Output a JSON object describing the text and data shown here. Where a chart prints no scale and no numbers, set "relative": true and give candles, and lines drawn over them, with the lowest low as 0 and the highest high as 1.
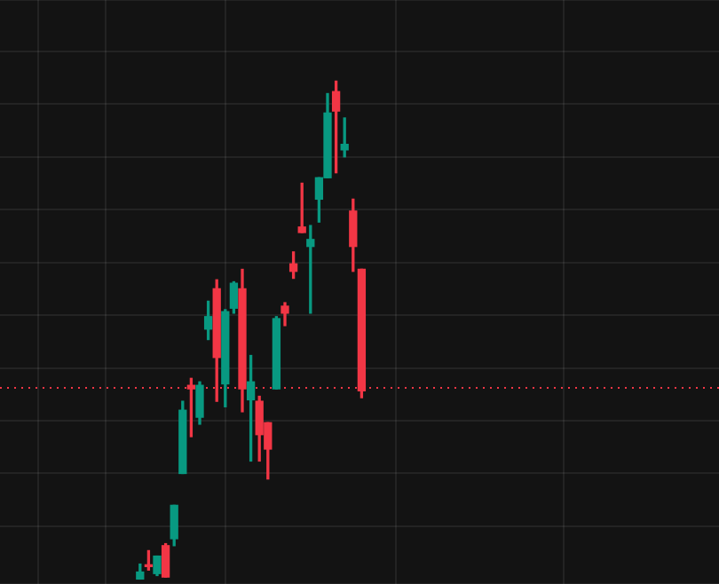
{
  "chart_data": {
    "type": "candlestick",
    "relative": true,
    "grid": true,
    "tick_labels": false,
    "categories": [
      null,
      null,
      null,
      null,
      null,
      null,
      null,
      null,
      null,
      null,
      null,
      null,
      null,
      null,
      null,
      null,
      null,
      null,
      null,
      null,
      null,
      null,
      null,
      null,
      null,
      null,
      null
    ],
    "ohlc": [
      [
        0,
        0.03,
        0,
        0.014
      ],
      [
        0.025,
        0.057,
        0.018,
        0.028
      ],
      [
        0.011,
        0.046,
        0.007,
        0.046
      ],
      [
        0.067,
        0.071,
        0.004,
        0.004
      ],
      [
        0.081,
        0.148,
        0.067,
        0.148
      ],
      [
        0.212,
        0.357,
        0.212,
        0.339
      ],
      [
        0.389,
        0.403,
        0.286,
        0.382
      ],
      [
        0.325,
        0.396,
        0.311,
        0.389
      ],
      [
        0.502,
        0.558,
        0.481,
        0.527
      ],
      [
        0.583,
        0.601,
        0.357,
        0.445
      ],
      [
        0.392,
        0.541,
        0.346,
        0.537
      ],
      [
        0.544,
        0.597,
        0.534,
        0.594
      ],
      [
        0.583,
        0.622,
        0.336,
        0.382
      ],
      [
        0.36,
        0.449,
        0.237,
        0.396
      ],
      [
        0.357,
        0.367,
        0.237,
        0.29
      ],
      [
        0.314,
        0.314,
        0.201,
        0.261
      ],
      [
        0.382,
        0.527,
        0.382,
        0.523
      ],
      [
        0.548,
        0.555,
        0.509,
        0.534
      ],
      [
        0.633,
        0.657,
        0.604,
        0.618
      ],
      [
        0.707,
        0.795,
        0.696,
        0.696
      ],
      [
        0.668,
        0.71,
        0.534,
        0.682
      ],
      [
        0.763,
        0.806,
        0.717,
        0.806
      ],
      [
        0.806,
        0.975,
        0.806,
        0.936
      ],
      [
        0.979,
        1,
        0.816,
        0.94
      ],
      [
        0.862,
        0.926,
        0.848,
        0.873
      ],
      [
        0.739,
        0.763,
        0.618,
        0.668
      ],
      [
        0.622,
        0.622,
        0.364,
        0.378
      ]
    ],
    "colors": [
      "#089981",
      "#f23645",
      "#089981",
      "#f23645",
      "#089981",
      "#089981",
      "#f23645",
      "#089981",
      "#089981",
      "#f23645",
      "#089981",
      "#089981",
      "#f23645",
      "#089981",
      "#f23645",
      "#f23645",
      "#089981",
      "#f23645",
      "#f23645",
      "#f23645",
      "#089981",
      "#089981",
      "#089981",
      "#f23645",
      "#089981",
      "#f23645",
      "#f23645"
    ],
    "ref_lines": [
      {
        "axis": "y",
        "value": 0.385,
        "color": "#f23645",
        "line_style": "dotted"
      }
    ]
  }
}
